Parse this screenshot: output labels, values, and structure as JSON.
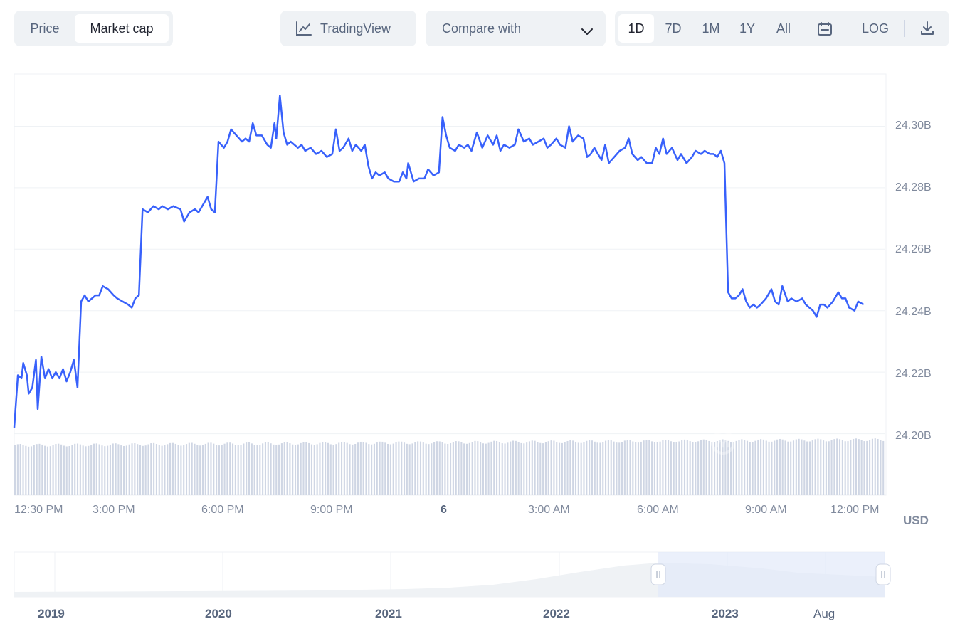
{
  "tabs": {
    "items": [
      "Price",
      "Market cap"
    ],
    "active": "Market cap"
  },
  "toolbar": {
    "tradingview_label": "TradingView",
    "compare_label": "Compare with",
    "ranges": [
      "1D",
      "7D",
      "1M",
      "1Y",
      "All"
    ],
    "active_range": "1D",
    "log_label": "LOG"
  },
  "colors": {
    "line": "#3861fb",
    "volume": "#cfd6e4",
    "navigator_selection": "#e8edfb",
    "navigator_area": "#eff2f5"
  },
  "icons": [
    "trading-chart-icon",
    "chevron-down-icon",
    "calendar-icon",
    "download-icon",
    "drag-handle-icon"
  ],
  "chart_data": {
    "type": "line",
    "title": "",
    "currency_label": "USD",
    "y_ticks": [
      "24.20B",
      "24.22B",
      "24.24B",
      "24.26B",
      "24.28B",
      "24.30B"
    ],
    "ylim": [
      24.18,
      24.317
    ],
    "x_ticks": [
      "12:30 PM",
      "3:00 PM",
      "6:00 PM",
      "9:00 PM",
      "6",
      "3:00 AM",
      "6:00 AM",
      "9:00 AM",
      "12:00 PM"
    ],
    "x_tick_hours": [
      12.5,
      15,
      18,
      21,
      24,
      27,
      30,
      33,
      36
    ],
    "xlim": [
      12.5,
      36.6
    ],
    "series": [
      {
        "points": [
          [
            12.5,
            24.202
          ],
          [
            12.6,
            24.219
          ],
          [
            12.7,
            24.218
          ],
          [
            12.75,
            24.223
          ],
          [
            12.85,
            24.219
          ],
          [
            12.9,
            24.213
          ],
          [
            13.0,
            24.215
          ],
          [
            13.1,
            24.224
          ],
          [
            13.15,
            24.208
          ],
          [
            13.25,
            24.225
          ],
          [
            13.35,
            24.218
          ],
          [
            13.45,
            24.221
          ],
          [
            13.55,
            24.218
          ],
          [
            13.65,
            24.22
          ],
          [
            13.75,
            24.218
          ],
          [
            13.85,
            24.221
          ],
          [
            13.95,
            24.217
          ],
          [
            14.05,
            24.22
          ],
          [
            14.15,
            24.224
          ],
          [
            14.25,
            24.215
          ],
          [
            14.35,
            24.243
          ],
          [
            14.45,
            24.245
          ],
          [
            14.55,
            24.243
          ],
          [
            14.65,
            24.244
          ],
          [
            14.75,
            24.245
          ],
          [
            14.85,
            24.245
          ],
          [
            14.95,
            24.248
          ],
          [
            15.1,
            24.247
          ],
          [
            15.25,
            24.245
          ],
          [
            15.35,
            24.244
          ],
          [
            15.5,
            24.243
          ],
          [
            15.65,
            24.242
          ],
          [
            15.75,
            24.241
          ],
          [
            15.85,
            24.244
          ],
          [
            15.95,
            24.245
          ],
          [
            16.05,
            24.273
          ],
          [
            16.2,
            24.272
          ],
          [
            16.35,
            24.274
          ],
          [
            16.5,
            24.273
          ],
          [
            16.6,
            24.274
          ],
          [
            16.75,
            24.273
          ],
          [
            16.9,
            24.274
          ],
          [
            17.1,
            24.273
          ],
          [
            17.2,
            24.269
          ],
          [
            17.35,
            24.272
          ],
          [
            17.5,
            24.273
          ],
          [
            17.6,
            24.272
          ],
          [
            17.75,
            24.275
          ],
          [
            17.85,
            24.277
          ],
          [
            17.95,
            24.273
          ],
          [
            18.05,
            24.272
          ],
          [
            18.15,
            24.295
          ],
          [
            18.3,
            24.293
          ],
          [
            18.4,
            24.295
          ],
          [
            18.5,
            24.299
          ],
          [
            18.65,
            24.297
          ],
          [
            18.8,
            24.295
          ],
          [
            18.9,
            24.296
          ],
          [
            19.0,
            24.295
          ],
          [
            19.1,
            24.301
          ],
          [
            19.2,
            24.297
          ],
          [
            19.35,
            24.297
          ],
          [
            19.5,
            24.294
          ],
          [
            19.6,
            24.293
          ],
          [
            19.7,
            24.301
          ],
          [
            19.75,
            24.296
          ],
          [
            19.85,
            24.31
          ],
          [
            19.95,
            24.298
          ],
          [
            20.05,
            24.294
          ],
          [
            20.15,
            24.295
          ],
          [
            20.25,
            24.294
          ],
          [
            20.35,
            24.293
          ],
          [
            20.45,
            24.294
          ],
          [
            20.55,
            24.292
          ],
          [
            20.7,
            24.293
          ],
          [
            20.85,
            24.291
          ],
          [
            21.0,
            24.292
          ],
          [
            21.15,
            24.29
          ],
          [
            21.3,
            24.291
          ],
          [
            21.4,
            24.299
          ],
          [
            21.5,
            24.292
          ],
          [
            21.6,
            24.293
          ],
          [
            21.75,
            24.296
          ],
          [
            21.85,
            24.292
          ],
          [
            21.95,
            24.294
          ],
          [
            22.1,
            24.292
          ],
          [
            22.2,
            24.294
          ],
          [
            22.3,
            24.287
          ],
          [
            22.4,
            24.283
          ],
          [
            22.5,
            24.285
          ],
          [
            22.6,
            24.284
          ],
          [
            22.75,
            24.285
          ],
          [
            22.85,
            24.283
          ],
          [
            23.0,
            24.282
          ],
          [
            23.15,
            24.282
          ],
          [
            23.25,
            24.285
          ],
          [
            23.35,
            24.283
          ],
          [
            23.4,
            24.288
          ],
          [
            23.55,
            24.282
          ],
          [
            23.7,
            24.283
          ],
          [
            23.85,
            24.283
          ],
          [
            23.95,
            24.286
          ],
          [
            24.1,
            24.284
          ],
          [
            24.25,
            24.285
          ],
          [
            24.35,
            24.303
          ],
          [
            24.45,
            24.297
          ],
          [
            24.55,
            24.293
          ],
          [
            24.7,
            24.292
          ],
          [
            24.8,
            24.294
          ],
          [
            24.95,
            24.293
          ],
          [
            25.05,
            24.294
          ],
          [
            25.15,
            24.292
          ],
          [
            25.3,
            24.298
          ],
          [
            25.45,
            24.293
          ],
          [
            25.6,
            24.297
          ],
          [
            25.75,
            24.294
          ],
          [
            25.85,
            24.297
          ],
          [
            25.95,
            24.292
          ],
          [
            26.05,
            24.294
          ],
          [
            26.2,
            24.293
          ],
          [
            26.35,
            24.294
          ],
          [
            26.45,
            24.299
          ],
          [
            26.6,
            24.295
          ],
          [
            26.75,
            24.296
          ],
          [
            26.85,
            24.294
          ],
          [
            27.0,
            24.295
          ],
          [
            27.15,
            24.296
          ],
          [
            27.25,
            24.293
          ],
          [
            27.35,
            24.294
          ],
          [
            27.5,
            24.296
          ],
          [
            27.6,
            24.294
          ],
          [
            27.75,
            24.293
          ],
          [
            27.85,
            24.3
          ],
          [
            27.95,
            24.295
          ],
          [
            28.1,
            24.297
          ],
          [
            28.25,
            24.296
          ],
          [
            28.35,
            24.29
          ],
          [
            28.45,
            24.291
          ],
          [
            28.55,
            24.293
          ],
          [
            28.65,
            24.291
          ],
          [
            28.75,
            24.289
          ],
          [
            28.85,
            24.294
          ],
          [
            28.95,
            24.288
          ],
          [
            29.1,
            24.29
          ],
          [
            29.25,
            24.292
          ],
          [
            29.4,
            24.293
          ],
          [
            29.5,
            24.296
          ],
          [
            29.6,
            24.291
          ],
          [
            29.75,
            24.289
          ],
          [
            29.85,
            24.29
          ],
          [
            30.0,
            24.288
          ],
          [
            30.15,
            24.288
          ],
          [
            30.25,
            24.293
          ],
          [
            30.35,
            24.291
          ],
          [
            30.45,
            24.296
          ],
          [
            30.55,
            24.291
          ],
          [
            30.7,
            24.293
          ],
          [
            30.85,
            24.289
          ],
          [
            30.95,
            24.291
          ],
          [
            31.1,
            24.288
          ],
          [
            31.25,
            24.29
          ],
          [
            31.35,
            24.292
          ],
          [
            31.5,
            24.291
          ],
          [
            31.6,
            24.292
          ],
          [
            31.75,
            24.291
          ],
          [
            31.85,
            24.291
          ],
          [
            31.95,
            24.29
          ],
          [
            32.05,
            24.292
          ],
          [
            32.15,
            24.288
          ],
          [
            32.25,
            24.246
          ],
          [
            32.35,
            24.244
          ],
          [
            32.45,
            24.244
          ],
          [
            32.55,
            24.245
          ],
          [
            32.65,
            24.247
          ],
          [
            32.75,
            24.243
          ],
          [
            32.85,
            24.241
          ],
          [
            32.95,
            24.242
          ],
          [
            33.05,
            24.241
          ],
          [
            33.15,
            24.242
          ],
          [
            33.3,
            24.244
          ],
          [
            33.45,
            24.247
          ],
          [
            33.55,
            24.243
          ],
          [
            33.65,
            24.242
          ],
          [
            33.75,
            24.248
          ],
          [
            33.9,
            24.243
          ],
          [
            34.0,
            24.244
          ],
          [
            34.15,
            24.243
          ],
          [
            34.3,
            24.244
          ],
          [
            34.4,
            24.242
          ],
          [
            34.5,
            24.241
          ],
          [
            34.6,
            24.24
          ],
          [
            34.7,
            24.238
          ],
          [
            34.8,
            24.242
          ],
          [
            34.9,
            24.242
          ],
          [
            35.0,
            24.241
          ],
          [
            35.15,
            24.243
          ],
          [
            35.3,
            24.246
          ],
          [
            35.4,
            24.244
          ],
          [
            35.5,
            24.244
          ],
          [
            35.6,
            24.241
          ],
          [
            35.75,
            24.24
          ],
          [
            35.85,
            24.243
          ],
          [
            36.0,
            24.242
          ]
        ]
      }
    ],
    "volume": {
      "bars": 320,
      "level": 0.88
    },
    "navigator": {
      "labels": [
        "2019",
        "2020",
        "2021",
        "2022",
        "2023",
        "Aug"
      ],
      "selection_start_fraction": 0.74,
      "selection_end_fraction": 1.0
    }
  }
}
